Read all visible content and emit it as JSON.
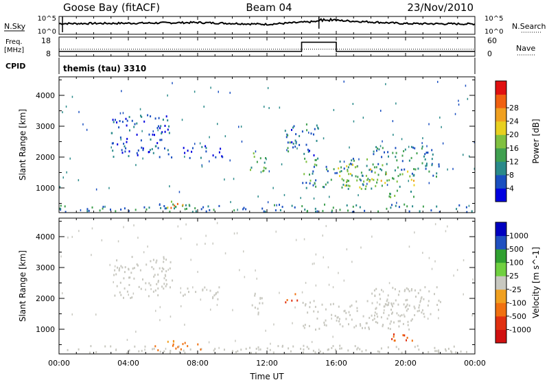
{
  "header": {
    "station": "Goose Bay (fitACF)",
    "beam": "Beam 04",
    "date": "23/Nov/2010"
  },
  "noise_panel": {
    "left_label": "N.Sky",
    "left_ticks": [
      "10^5",
      "10^0"
    ],
    "right_label": "N.Search",
    "right_ticks": [
      "10^5",
      "10^0"
    ]
  },
  "freq_panel": {
    "left_label_top": "Freq.",
    "left_label_bottom": "[MHz]",
    "left_ticks": [
      "18",
      "8"
    ],
    "right_label": "Nave",
    "right_ticks": [
      "60",
      "0"
    ]
  },
  "cpid_panel": {
    "left_label": "CPID",
    "text": "themis (tau) 3310"
  },
  "chart_data": [
    {
      "type": "line",
      "title": "N.Sky / N.Search",
      "x": [
        "00:00",
        "04:00",
        "08:00",
        "12:00",
        "16:00",
        "20:00",
        "00:00"
      ],
      "series": [
        {
          "name": "N.Sky",
          "values": [
            3.0,
            3.1,
            3.3,
            2.8,
            3.9,
            3.0,
            2.9
          ]
        },
        {
          "name": "N.Search",
          "values": [
            0.6,
            0.6,
            0.6,
            0.6,
            0.6,
            0.6,
            0.6
          ]
        }
      ],
      "ylim": [
        0,
        5
      ]
    },
    {
      "type": "line",
      "title": "Freq. / Nave",
      "x": [
        "00:00",
        "04:00",
        "08:00",
        "12:00",
        "14:00",
        "15:00",
        "16:00",
        "20:00",
        "00:00"
      ],
      "series": [
        {
          "name": "Freq.",
          "values": [
            10.5,
            10.5,
            10.5,
            10.5,
            15.3,
            15.3,
            10.5,
            10.5,
            10.5
          ]
        },
        {
          "name": "Nave",
          "values": [
            22,
            22,
            22,
            22,
            22,
            22,
            22,
            22,
            22
          ]
        }
      ],
      "ylim": [
        8,
        18
      ]
    },
    {
      "type": "heatmap",
      "xlabel": "Time UT",
      "ylabel": "Slant Range [km]",
      "x_ticks": [
        "00:00",
        "04:00",
        "08:00",
        "12:00",
        "16:00",
        "20:00",
        "00:00"
      ],
      "y_ticks": [
        "1000",
        "2000",
        "3000",
        "4000"
      ],
      "ylim": [
        200,
        4600
      ],
      "colorbar_label": "Power [dB]",
      "colorbar_ticks": [
        "4",
        "8",
        "12",
        "16",
        "20",
        "24",
        "28"
      ],
      "colorbar_colors": [
        "#0000e0",
        "#1a4fc0",
        "#2a8a8a",
        "#40a050",
        "#80c040",
        "#e8d020",
        "#f0a020",
        "#f06010",
        "#e01010"
      ],
      "regions": [
        {
          "t0": 0.0,
          "t1": 24.0,
          "r0": 250,
          "r1": 500,
          "value": 10
        },
        {
          "t0": 6.0,
          "t1": 8.0,
          "r0": 350,
          "r1": 600,
          "value": 22
        },
        {
          "t0": 3.0,
          "t1": 6.5,
          "r0": 2000,
          "r1": 3400,
          "value": 6
        },
        {
          "t0": 7.0,
          "t1": 9.5,
          "r0": 2000,
          "r1": 2400,
          "value": 5
        },
        {
          "t0": 11.0,
          "t1": 12.0,
          "r0": 1500,
          "r1": 2200,
          "value": 14
        },
        {
          "t0": 14.0,
          "t1": 18.0,
          "r0": 1000,
          "r1": 2000,
          "value": 12
        },
        {
          "t0": 16.0,
          "t1": 20.5,
          "r0": 1000,
          "r1": 1800,
          "value": 18
        },
        {
          "t0": 18.0,
          "t1": 22.0,
          "r0": 1400,
          "r1": 2400,
          "value": 10
        },
        {
          "t0": 13.0,
          "t1": 15.0,
          "r0": 2000,
          "r1": 3100,
          "value": 9
        },
        {
          "t0": 19.0,
          "t1": 20.5,
          "r0": 700,
          "r1": 1000,
          "value": 16
        }
      ]
    },
    {
      "type": "heatmap",
      "xlabel": "Time UT",
      "ylabel": "Slant Range [km]",
      "x_ticks": [
        "00:00",
        "04:00",
        "08:00",
        "12:00",
        "16:00",
        "20:00",
        "00:00"
      ],
      "y_ticks": [
        "1000",
        "2000",
        "3000",
        "4000"
      ],
      "ylim": [
        200,
        4600
      ],
      "colorbar_label": "Velocity [m s^-1]",
      "colorbar_ticks": [
        "1000",
        "500",
        "100",
        "25",
        "-25",
        "-100",
        "-500",
        "-1000"
      ],
      "colorbar_colors": [
        "#0000c0",
        "#2050c0",
        "#30a030",
        "#70d040",
        "#c8c8c0",
        "#f0a020",
        "#f07010",
        "#e03010",
        "#d01010"
      ],
      "regions": [
        {
          "t0": 0.0,
          "t1": 24.0,
          "r0": 250,
          "r1": 500,
          "value": 0
        },
        {
          "t0": 5.5,
          "t1": 8.5,
          "r0": 350,
          "r1": 650,
          "value": -80
        },
        {
          "t0": 3.0,
          "t1": 6.5,
          "r0": 2000,
          "r1": 3400,
          "value": 0
        },
        {
          "t0": 7.0,
          "t1": 9.5,
          "r0": 2000,
          "r1": 2400,
          "value": 0
        },
        {
          "t0": 11.0,
          "t1": 12.0,
          "r0": 1500,
          "r1": 2200,
          "value": 0
        },
        {
          "t0": 13.0,
          "t1": 13.8,
          "r0": 1900,
          "r1": 2300,
          "value": -300
        },
        {
          "t0": 14.0,
          "t1": 20.5,
          "r0": 1000,
          "r1": 2000,
          "value": 0
        },
        {
          "t0": 18.0,
          "t1": 22.0,
          "r0": 1400,
          "r1": 2400,
          "value": 0
        },
        {
          "t0": 19.0,
          "t1": 20.5,
          "r0": 600,
          "r1": 1000,
          "value": -300
        }
      ]
    }
  ]
}
